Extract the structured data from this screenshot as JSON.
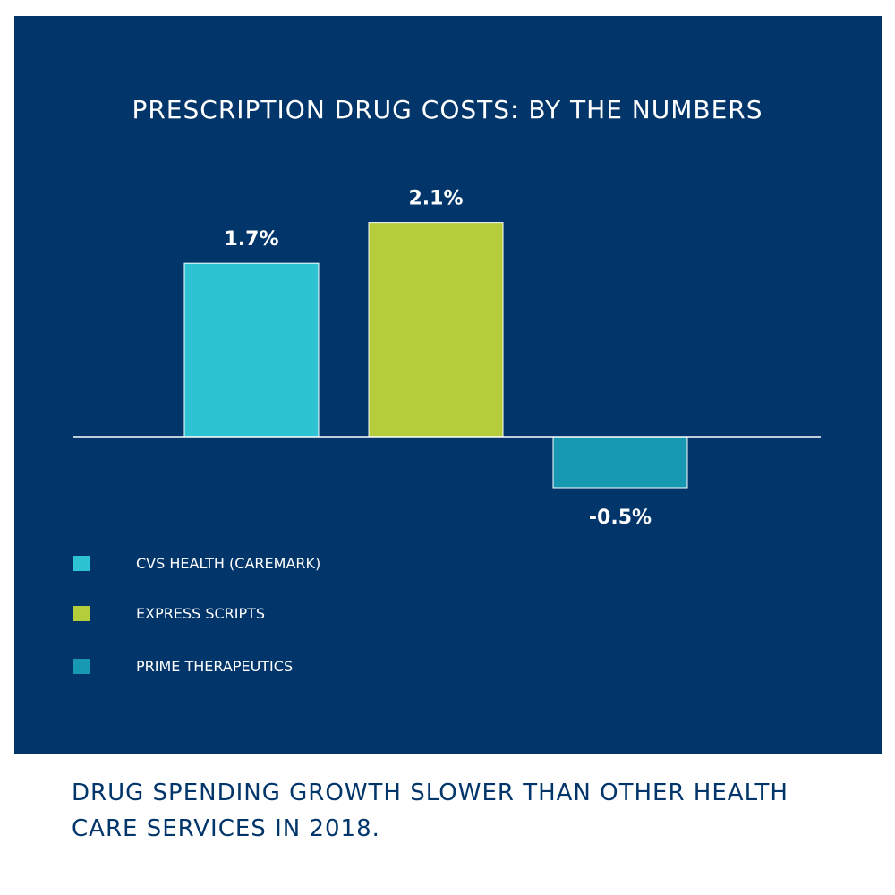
{
  "chart_data": {
    "type": "bar",
    "title": "PRESCRIPTION DRUG COSTS: BY THE NUMBERS",
    "categories": [
      "CVS HEALTH (CAREMARK)",
      "EXPRESS SCRIPTS",
      "PRIME THERAPEUTICS"
    ],
    "values": [
      1.7,
      2.1,
      -0.5
    ],
    "value_labels": [
      "1.7%",
      "2.1%",
      "-0.5%"
    ],
    "colors": [
      "#2ec3d2",
      "#b5cc3b",
      "#1899b2"
    ],
    "legend": {
      "placement": "bottom-left",
      "entries": [
        "CVS HEALTH (CAREMARK)",
        "EXPRESS SCRIPTS",
        "PRIME THERAPEUTICS"
      ]
    },
    "grid": false,
    "baseline": 0,
    "ylim": [
      -1.0,
      2.5
    ]
  },
  "caption": "DRUG SPENDING GROWTH SLOWER THAN OTHER HEALTH CARE SERVICES IN 2018.",
  "colors": {
    "panel": "#02366b",
    "text": "#ffffff",
    "caption": "#02366b"
  }
}
